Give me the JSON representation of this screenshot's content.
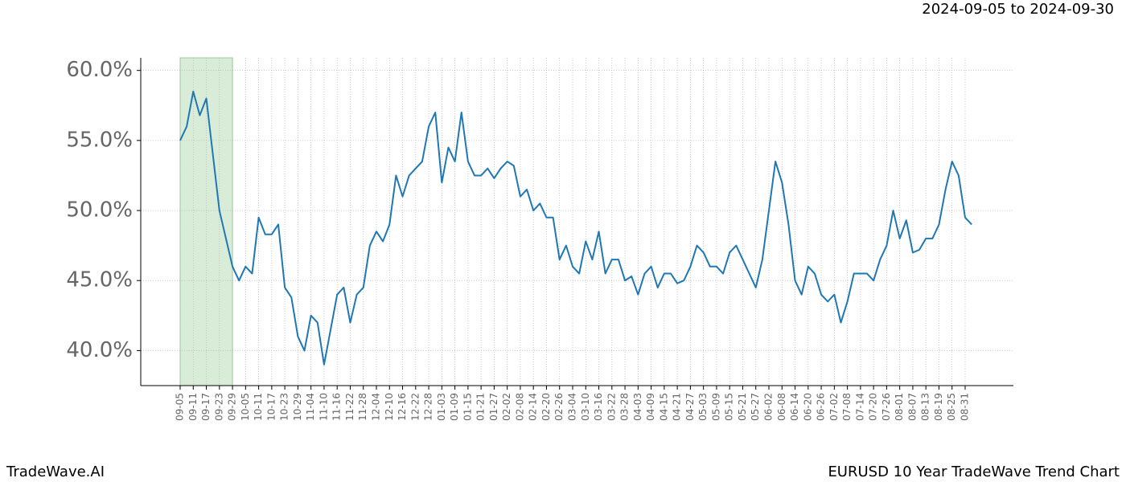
{
  "chart_data": {
    "type": "line",
    "title": "2024-09-05 to 2024-09-30",
    "footer_left": "TradeWave.AI",
    "footer_right": "EURUSD 10 Year TradeWave Trend Chart",
    "highlight": {
      "from": "09-05",
      "to": "09-29",
      "color": "#d8ecd8"
    },
    "grid": true,
    "categories": [
      "09-05",
      null,
      "09-11",
      null,
      "09-17",
      null,
      "09-23",
      null,
      "09-29",
      null,
      "10-05",
      null,
      "10-11",
      null,
      "10-17",
      null,
      "10-23",
      null,
      "10-29",
      null,
      "11-04",
      null,
      "11-10",
      null,
      "11-16",
      null,
      "11-22",
      null,
      "11-28",
      null,
      "12-04",
      null,
      "12-10",
      null,
      "12-16",
      null,
      "12-22",
      null,
      "12-28",
      null,
      "01-03",
      null,
      "01-09",
      null,
      "01-15",
      null,
      "01-21",
      null,
      "01-27",
      null,
      "02-02",
      null,
      "02-08",
      null,
      "02-14",
      null,
      "02-20",
      null,
      "02-26",
      null,
      "03-04",
      null,
      "03-10",
      null,
      "03-16",
      null,
      "03-22",
      null,
      "03-28",
      null,
      "04-03",
      null,
      "04-09",
      null,
      "04-15",
      null,
      "04-21",
      null,
      "04-27",
      null,
      "05-03",
      null,
      "05-09",
      null,
      "05-15",
      null,
      "05-21",
      null,
      "05-27",
      null,
      "06-02",
      null,
      "06-08",
      null,
      "06-14",
      null,
      "06-20",
      null,
      "06-26",
      null,
      "07-02",
      null,
      "07-08",
      null,
      "07-14",
      null,
      "07-20",
      null,
      "07-26",
      null,
      "08-01",
      null,
      "08-07",
      null,
      "08-13",
      null,
      "08-19",
      null,
      "08-25",
      null,
      "08-31",
      null
    ],
    "series": [
      {
        "name": "EURUSD",
        "color": "#1f77b4",
        "values": [
          55.0,
          56.0,
          58.5,
          56.8,
          58.0,
          54.0,
          50.0,
          48.0,
          46.0,
          45.0,
          46.0,
          45.5,
          49.5,
          48.3,
          48.3,
          49.0,
          44.5,
          43.8,
          41.0,
          40.0,
          42.5,
          42.0,
          39.0,
          41.5,
          44.0,
          44.5,
          42.0,
          44.0,
          44.5,
          47.5,
          48.5,
          47.8,
          49.0,
          52.5,
          51.0,
          52.5,
          53.0,
          53.5,
          56.0,
          57.0,
          52.0,
          54.5,
          53.5,
          57.0,
          53.5,
          52.5,
          52.5,
          53.0,
          52.3,
          53.0,
          53.5,
          53.2,
          51.0,
          51.5,
          50.0,
          50.5,
          49.5,
          49.5,
          46.5,
          47.5,
          46.0,
          45.5,
          47.8,
          46.5,
          48.5,
          45.5,
          46.5,
          46.5,
          45.0,
          45.3,
          44.0,
          45.5,
          46.0,
          44.5,
          45.5,
          45.5,
          44.8,
          45.0,
          46.0,
          47.5,
          47.0,
          46.0,
          46.0,
          45.5,
          47.0,
          47.5,
          46.5,
          45.5,
          44.5,
          46.5,
          50.0,
          53.5,
          52.0,
          49.0,
          45.0,
          44.0,
          46.0,
          45.5,
          44.0,
          43.5,
          44.0,
          42.0,
          43.5,
          45.5,
          45.5,
          45.5,
          45.0,
          46.5,
          47.5,
          50.0,
          48.0,
          49.3,
          47.0,
          47.2,
          48.0,
          48.0,
          49.0,
          51.5,
          53.5,
          52.5,
          49.5,
          49.0
        ]
      }
    ],
    "ylim": [
      37.5,
      60.9
    ],
    "yticks": [
      {
        "value": 40,
        "label": "40.0%"
      },
      {
        "value": 45,
        "label": "45.0%"
      },
      {
        "value": 50,
        "label": "50.0%"
      },
      {
        "value": 55,
        "label": "55.0%"
      },
      {
        "value": 60,
        "label": "60.0%"
      }
    ]
  }
}
